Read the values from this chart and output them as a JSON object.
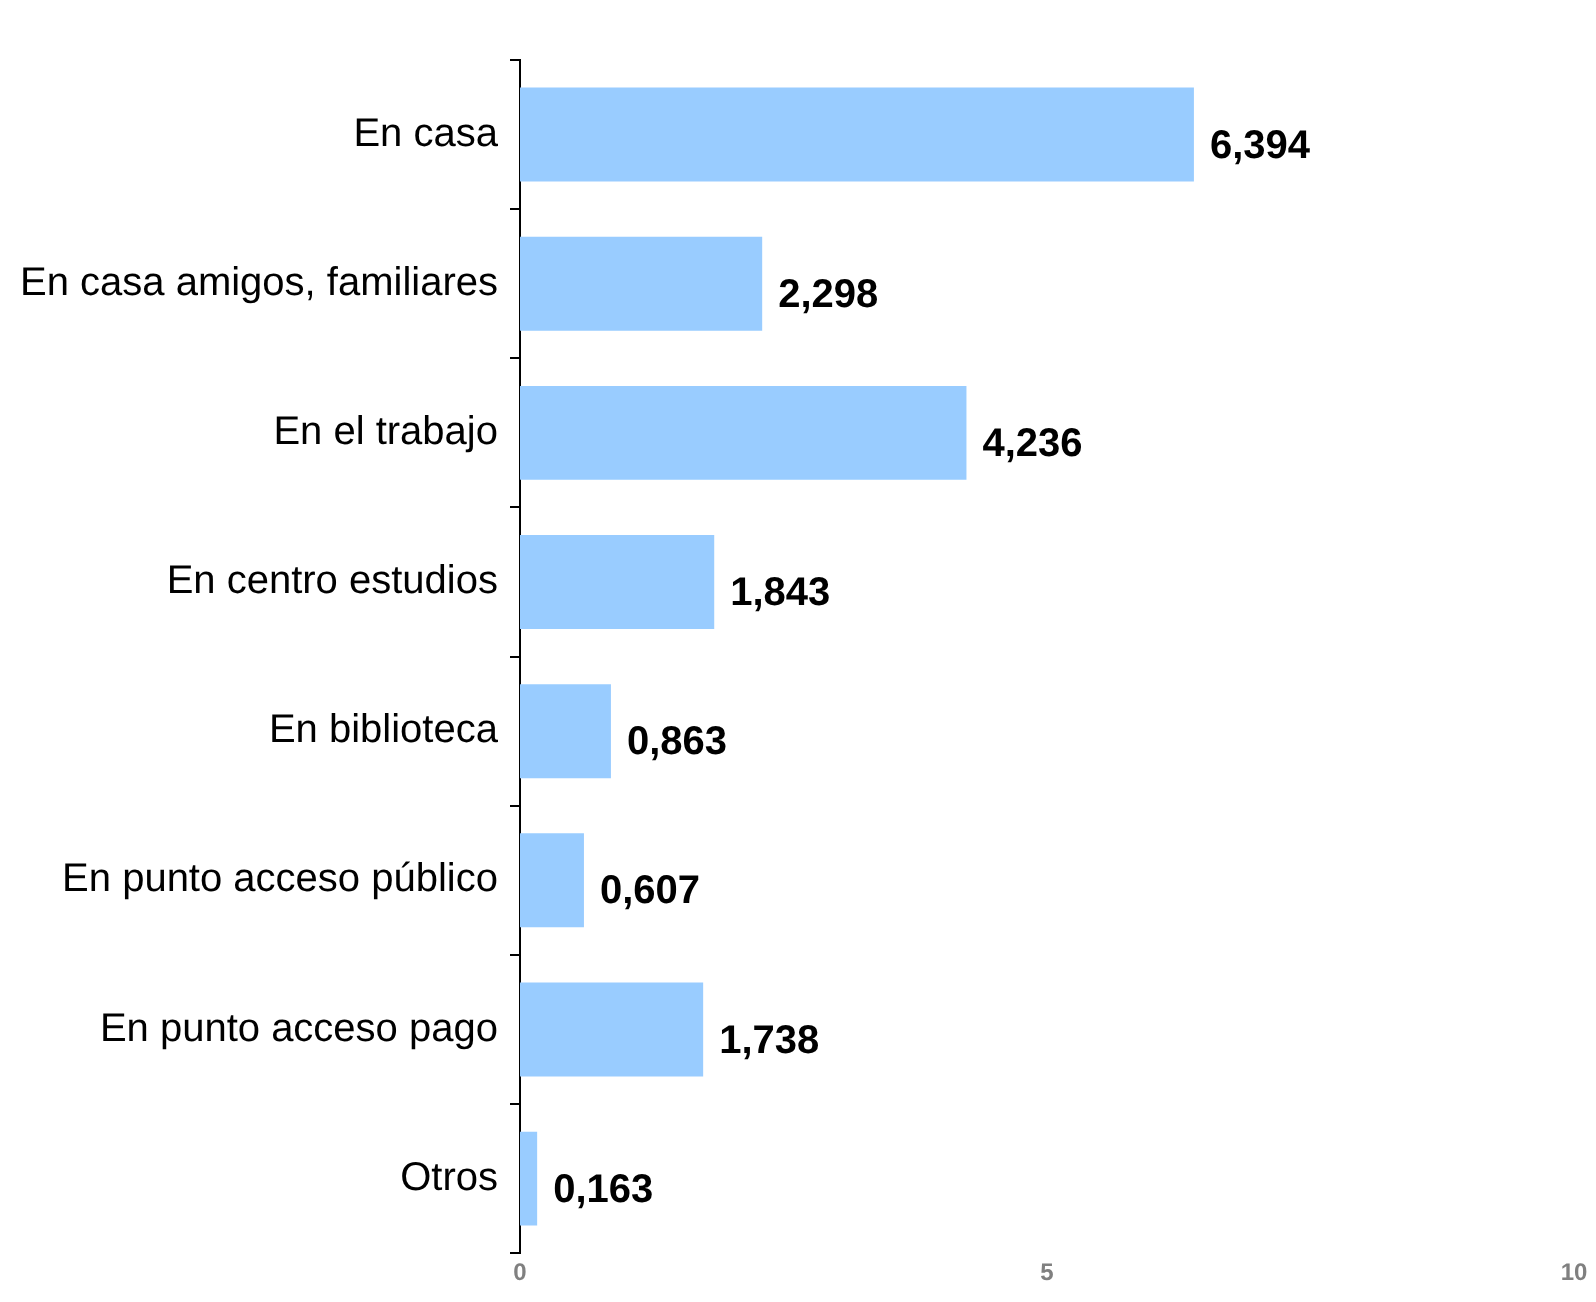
{
  "chart_data": {
    "type": "bar",
    "orientation": "horizontal",
    "categories": [
      "En casa",
      "En casa amigos, familiares",
      "En el trabajo",
      "En centro estudios",
      "En biblioteca",
      "En punto acceso público",
      "En punto acceso pago",
      "Otros"
    ],
    "values": [
      6.394,
      2.298,
      4.236,
      1.843,
      0.863,
      0.607,
      1.738,
      0.163
    ],
    "value_labels": [
      "6,394",
      "2,298",
      "4,236",
      "1,843",
      "0,863",
      "0,607",
      "1,738",
      "0,163"
    ],
    "color": "#99ccff",
    "xlim": [
      0,
      10
    ],
    "xticks": [
      0,
      5,
      10
    ],
    "grid": false,
    "legend": false
  }
}
